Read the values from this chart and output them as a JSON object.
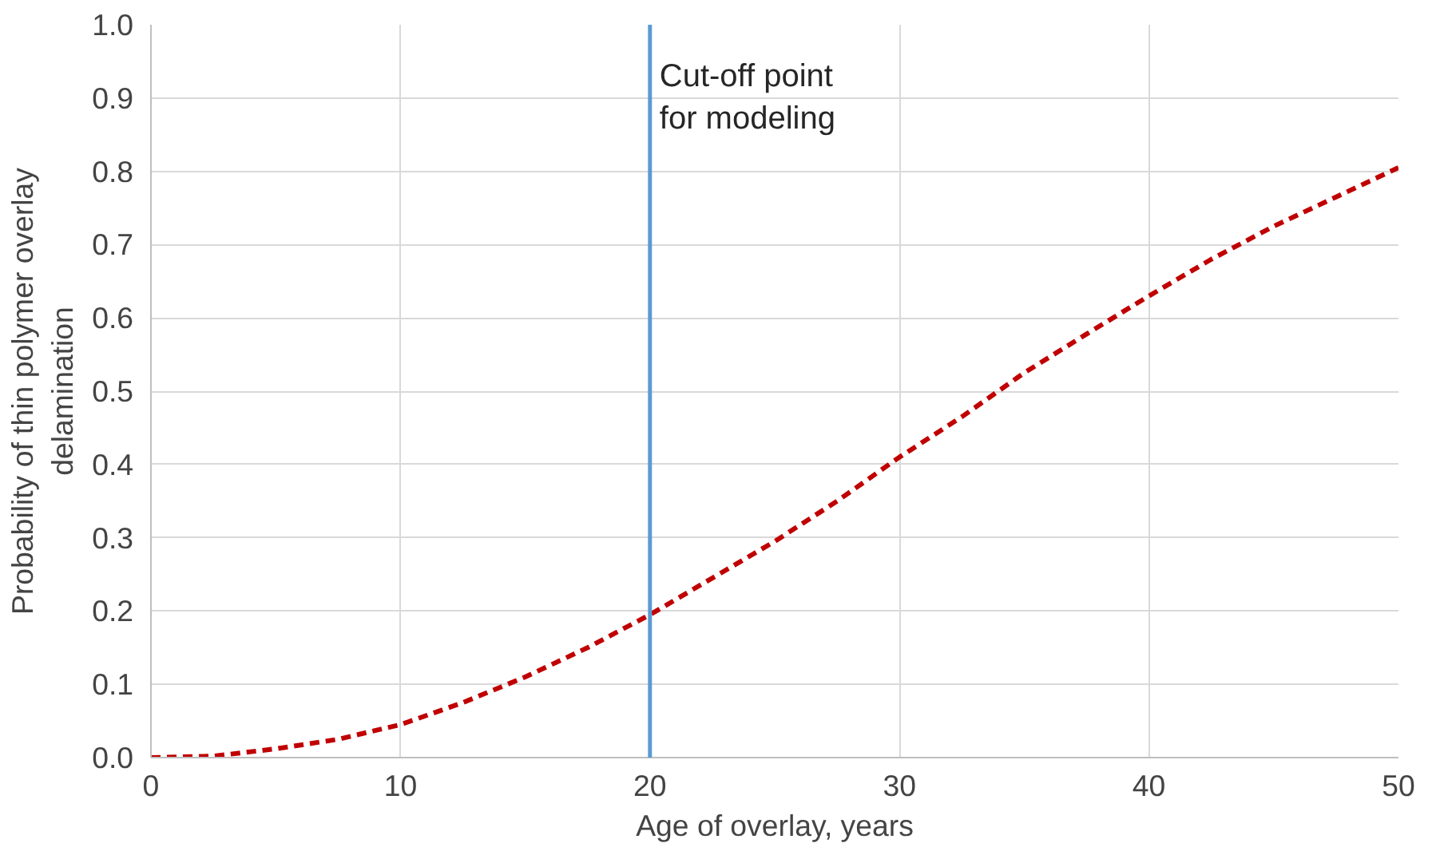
{
  "chart_data": {
    "type": "line",
    "xlabel": "Age of overlay, years",
    "ylabel": "Probability of thin polymer overlay\ndelamination",
    "x": [
      0,
      2.5,
      5,
      7.5,
      10,
      12.5,
      15,
      17.5,
      20,
      22.5,
      25,
      27.5,
      30,
      32.5,
      35,
      37.5,
      40,
      42.5,
      45,
      47.5,
      50
    ],
    "series": [
      {
        "color": "#c00000",
        "values": [
          0,
          0.002,
          0.012,
          0.025,
          0.045,
          0.075,
          0.11,
          0.15,
          0.195,
          0.245,
          0.295,
          0.35,
          0.41,
          0.465,
          0.525,
          0.578,
          0.63,
          0.68,
          0.725,
          0.765,
          0.805
        ]
      }
    ],
    "line_style": "dashed",
    "marker": "none",
    "grid": true,
    "xlim": [
      0,
      50
    ],
    "xticks": [
      0,
      10,
      20,
      30,
      40,
      50
    ],
    "ylim": [
      0,
      1
    ],
    "yticks": [
      {
        "value": 0,
        "label": "0.0"
      },
      {
        "value": 0.1,
        "label": "0.1"
      },
      {
        "value": 0.2,
        "label": "0.2"
      },
      {
        "value": 0.3,
        "label": "0.3"
      },
      {
        "value": 0.4,
        "label": "0.4"
      },
      {
        "value": 0.5,
        "label": "0.5"
      },
      {
        "value": 0.6,
        "label": "0.6"
      },
      {
        "value": 0.7,
        "label": "0.7"
      },
      {
        "value": 0.8,
        "label": "0.8"
      },
      {
        "value": 0.9,
        "label": "0.9"
      },
      {
        "value": 1,
        "label": "1.0"
      }
    ],
    "ref_lines": [
      {
        "axis": "x",
        "value": 20,
        "label": "Cut-off point\nfor modeling",
        "color": "#5b9bd5",
        "line_style": "solid"
      }
    ]
  }
}
